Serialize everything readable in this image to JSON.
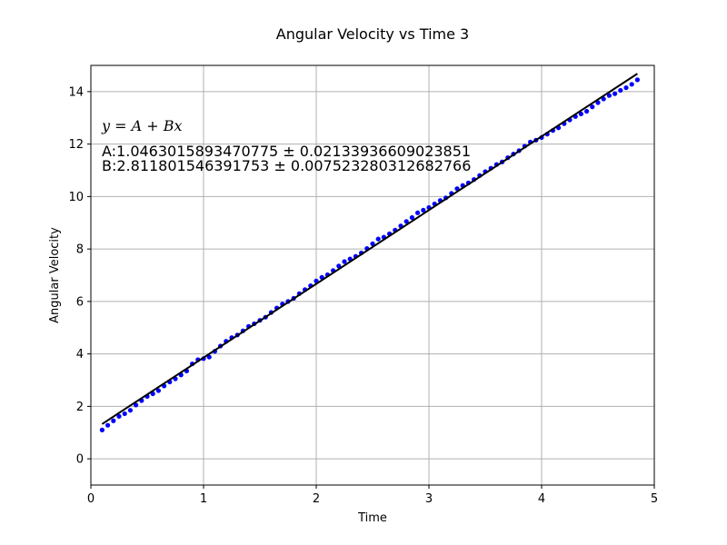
{
  "chart_data": {
    "type": "scatter",
    "title": "Angular Velocity vs Time 3",
    "xlabel": "Time",
    "ylabel": "Angular Velocity",
    "xlim": [
      0,
      5
    ],
    "ylim": [
      -1,
      15
    ],
    "xticks": [
      0,
      1,
      2,
      3,
      4,
      5
    ],
    "yticks": [
      0,
      2,
      4,
      6,
      8,
      10,
      12,
      14
    ],
    "grid": true,
    "annotations": {
      "equation": "y = A + Bx",
      "A": "A:1.0463015893470775 ± 0.02133936609023851",
      "B": "B:2.811801546391753 ± 0.007523280312682766"
    },
    "fit": {
      "A": 1.0463015893470775,
      "B": 2.811801546391753,
      "x_range": [
        0.1,
        4.85
      ],
      "color": "#000000"
    },
    "series": [
      {
        "marker_color": "#0000ff",
        "x": [
          0.1,
          0.15,
          0.2,
          0.25,
          0.3,
          0.35,
          0.4,
          0.45,
          0.5,
          0.55,
          0.6,
          0.65,
          0.7,
          0.75,
          0.8,
          0.85,
          0.9,
          0.95,
          1.0,
          1.05,
          1.1,
          1.15,
          1.2,
          1.25,
          1.3,
          1.35,
          1.4,
          1.45,
          1.5,
          1.55,
          1.6,
          1.65,
          1.7,
          1.75,
          1.8,
          1.85,
          1.9,
          1.95,
          2.0,
          2.05,
          2.1,
          2.15,
          2.2,
          2.25,
          2.3,
          2.35,
          2.4,
          2.45,
          2.5,
          2.55,
          2.6,
          2.65,
          2.7,
          2.75,
          2.8,
          2.85,
          2.9,
          2.95,
          3.0,
          3.05,
          3.1,
          3.15,
          3.2,
          3.25,
          3.3,
          3.35,
          3.4,
          3.45,
          3.5,
          3.55,
          3.6,
          3.65,
          3.7,
          3.75,
          3.8,
          3.85,
          3.9,
          3.95,
          4.0,
          4.05,
          4.1,
          4.15,
          4.2,
          4.25,
          4.3,
          4.35,
          4.4,
          4.45,
          4.5,
          4.55,
          4.6,
          4.65,
          4.7,
          4.75,
          4.8,
          4.85
        ],
        "y": [
          1.1,
          1.28,
          1.45,
          1.62,
          1.72,
          1.85,
          2.05,
          2.22,
          2.38,
          2.48,
          2.6,
          2.78,
          2.93,
          3.05,
          3.2,
          3.35,
          3.62,
          3.78,
          3.82,
          3.88,
          4.1,
          4.3,
          4.48,
          4.62,
          4.72,
          4.88,
          5.05,
          5.15,
          5.28,
          5.4,
          5.58,
          5.75,
          5.9,
          6.0,
          6.12,
          6.3,
          6.45,
          6.6,
          6.78,
          6.92,
          7.02,
          7.18,
          7.35,
          7.52,
          7.62,
          7.72,
          7.85,
          8.02,
          8.2,
          8.38,
          8.45,
          8.58,
          8.72,
          8.88,
          9.05,
          9.2,
          9.38,
          9.48,
          9.58,
          9.72,
          9.85,
          9.95,
          10.12,
          10.3,
          10.42,
          10.52,
          10.65,
          10.8,
          10.95,
          11.08,
          11.22,
          11.32,
          11.48,
          11.62,
          11.75,
          11.92,
          12.08,
          12.15,
          12.25,
          12.38,
          12.52,
          12.62,
          12.78,
          12.92,
          13.05,
          13.15,
          13.25,
          13.42,
          13.58,
          13.72,
          13.85,
          13.92,
          14.05,
          14.15,
          14.28,
          14.45
        ]
      }
    ]
  }
}
